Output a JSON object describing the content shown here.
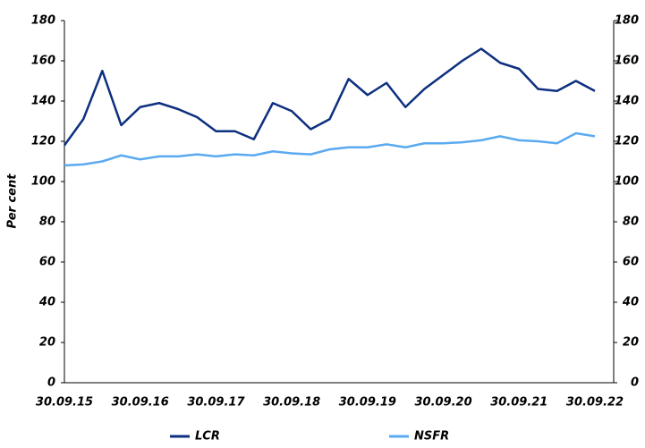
{
  "chart_data": {
    "type": "line",
    "y_label": "Per cent",
    "categories": [
      "30.09.15",
      null,
      null,
      null,
      "30.09.16",
      null,
      null,
      null,
      "30.09.17",
      null,
      null,
      null,
      "30.09.18",
      null,
      null,
      null,
      "30.09.19",
      null,
      null,
      null,
      "30.09.20",
      null,
      null,
      null,
      "30.09.21",
      null,
      null,
      null,
      "30.09.22"
    ],
    "series": [
      {
        "name": "LCR",
        "color": "#0d2f7f",
        "values": [
          118,
          131,
          155,
          128,
          137,
          139,
          136,
          132,
          125,
          125,
          121,
          139,
          135,
          126,
          131,
          151,
          143,
          149,
          137,
          146,
          153,
          160,
          166,
          159,
          156,
          146,
          145,
          150,
          145
        ]
      },
      {
        "name": "NSFR",
        "color": "#5aaaf0",
        "values": [
          108,
          108.5,
          110,
          113,
          111,
          112.5,
          112.5,
          113.5,
          112.5,
          113.5,
          113,
          115,
          114,
          113.5,
          116,
          117,
          117,
          118.5,
          117,
          119,
          119,
          119.5,
          120.5,
          122.5,
          120.5,
          120,
          119,
          124,
          122.5
        ]
      }
    ],
    "ylim": [
      0,
      180
    ],
    "yticks": [
      0,
      20,
      40,
      60,
      80,
      100,
      120,
      140,
      160,
      180
    ],
    "y2lim": [
      0,
      180
    ],
    "y2ticks": [
      0,
      20,
      40,
      60,
      80,
      100,
      120,
      140,
      160,
      180
    ],
    "grid": false,
    "legend": "bottom"
  }
}
